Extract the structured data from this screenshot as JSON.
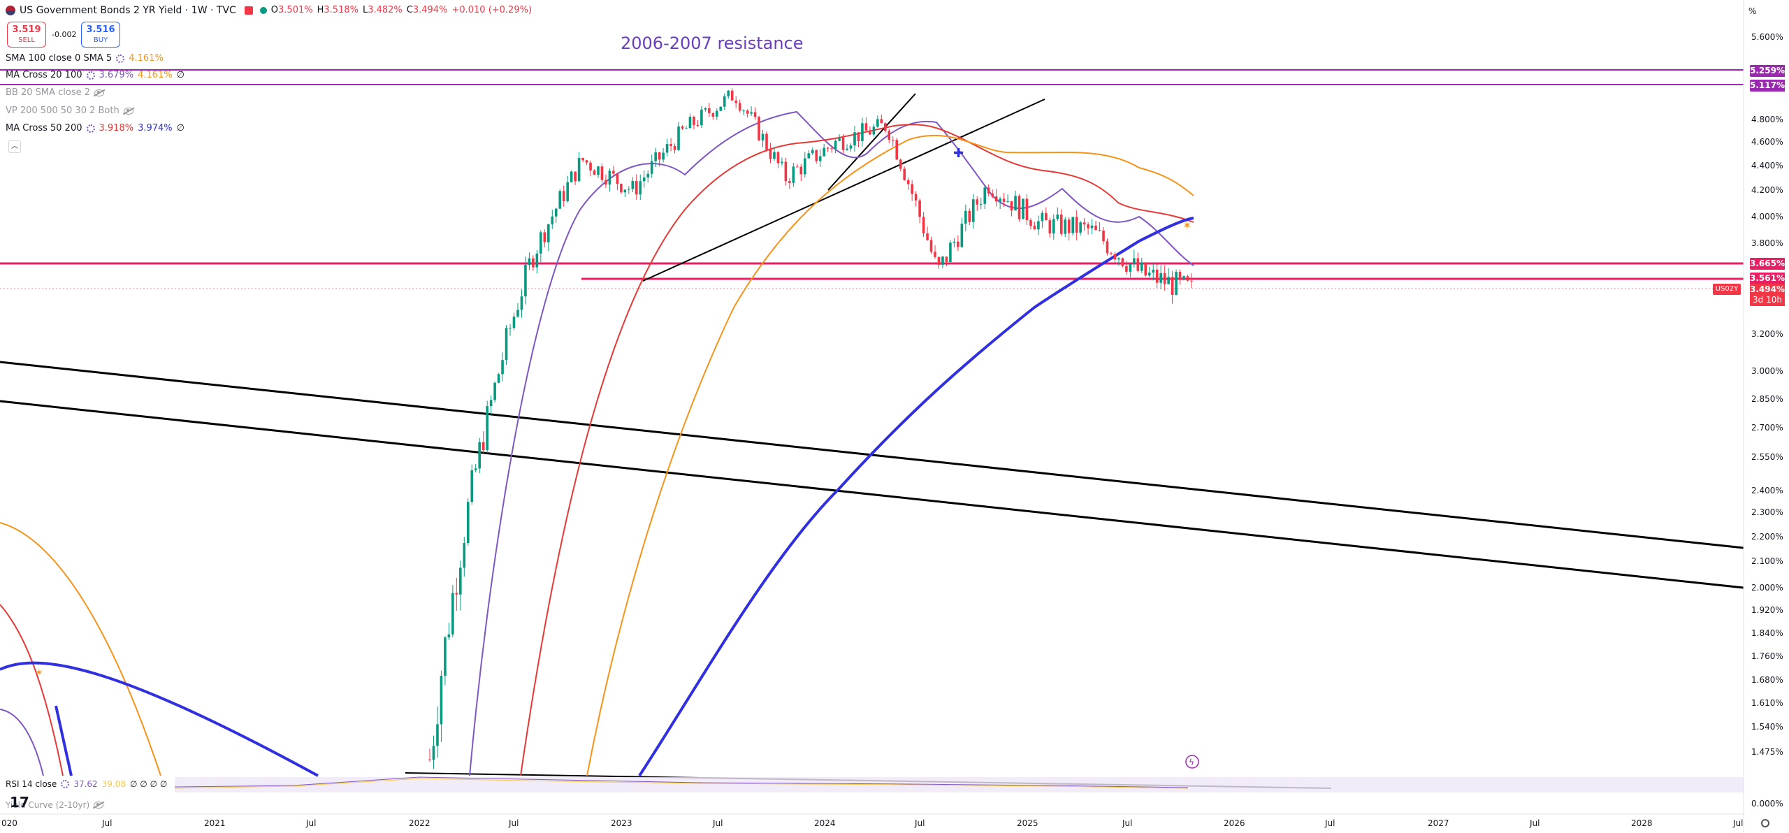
{
  "header": {
    "title": "US Government Bonds 2 YR Yield · 1W · TVC",
    "ohlc": {
      "o_label": "O",
      "o": "3.501%",
      "h_label": "H",
      "h": "3.518%",
      "l_label": "L",
      "l": "3.482%",
      "c_label": "C",
      "c": "3.494%",
      "change": "+0.010 (+0.29%)"
    }
  },
  "trade": {
    "sell_price": "3.519",
    "sell_label": "SELL",
    "spread": "-0.002",
    "buy_price": "3.516",
    "buy_label": "BUY"
  },
  "indicators": [
    {
      "label": "SMA 100 close 0 SMA 5",
      "v1": "4.161%",
      "v1_color": "#f7931a"
    },
    {
      "label": "MA Cross 20 100",
      "v1": "3.679%",
      "v1_color": "#7e57c2",
      "v2": "4.161%",
      "v2_color": "#f7931a",
      "v3": "∅"
    },
    {
      "label": "BB 20 SMA close 2",
      "hidden": true
    },
    {
      "label": "VP 200 500 50 30 2 Both",
      "hidden": true
    },
    {
      "label": "MA Cross 50 200",
      "v1": "3.918%",
      "v1_color": "#e53935",
      "v2": "3.974%",
      "v2_color": "#3030e0",
      "v3": "∅"
    }
  ],
  "annotation": "2006-2007 resistance",
  "price_axis": {
    "unit": "%",
    "ticks": [
      "5.600%",
      "4.800%",
      "4.600%",
      "4.400%",
      "4.200%",
      "4.000%",
      "3.800%",
      "3.200%",
      "3.000%",
      "2.850%",
      "2.700%",
      "2.550%",
      "2.400%",
      "2.300%",
      "2.200%",
      "2.100%",
      "2.000%",
      "1.920%",
      "1.840%",
      "1.760%",
      "1.680%",
      "1.610%",
      "1.540%",
      "1.475%",
      "0.000%"
    ],
    "tags": [
      {
        "text": "5.259%",
        "color": "#9c27b0"
      },
      {
        "text": "5.117%",
        "color": "#9c27b0"
      },
      {
        "text": "3.665%",
        "color": "#e91e63"
      },
      {
        "text": "3.561%",
        "color": "#e91e63"
      },
      {
        "text": "3.494%",
        "color": "#f23645"
      },
      {
        "text": "3d 10h",
        "color": "#f23645"
      }
    ],
    "symbol_tag": "US02Y"
  },
  "time_axis": {
    "ticks": [
      "020",
      "Jul",
      "2021",
      "Jul",
      "2022",
      "Jul",
      "2023",
      "Jul",
      "2024",
      "Jul",
      "2025",
      "Jul",
      "2026",
      "Jul",
      "2027",
      "Jul",
      "2028",
      "Jul"
    ]
  },
  "rsi": {
    "label": "RSI 14 close",
    "v1": "37.62",
    "v1_color": "#7e57c2",
    "v2": "39.08",
    "v2_color": "#f7c948",
    "rest": "∅ ∅ ∅ ∅"
  },
  "yield_curve": {
    "label": "Yield Curve (2-10yr)"
  },
  "colors": {
    "up": "#089981",
    "down": "#f23645",
    "purple_line": "#9c27b0",
    "pink_line": "#e91e63",
    "sma_orange": "#f7931a",
    "ma_red": "#e53935",
    "ma_blue": "#3030e0",
    "ma_violet": "#7e57c2"
  },
  "chart_data": {
    "type": "line",
    "xlabel": "",
    "ylabel": "",
    "ylim": [
      1.45,
      5.7
    ],
    "series": [
      {
        "name": "",
        "values_note": "",
        "x": [
          "2022-03",
          "2022-06",
          "2022-09",
          "2022-12",
          "2023-03",
          "2023-06",
          "2023-09",
          "2023-12",
          "2024-03",
          "2024-06",
          "2024-09",
          "2024-12",
          "2025-03",
          "2025-06",
          "2025-09",
          "2025-11"
        ],
        "values": [
          1.45,
          2.6,
          3.7,
          4.45,
          4.2,
          4.7,
          5.05,
          4.3,
          4.6,
          4.75,
          3.6,
          4.25,
          3.95,
          3.9,
          3.6,
          3.49
        ]
      }
    ]
  }
}
